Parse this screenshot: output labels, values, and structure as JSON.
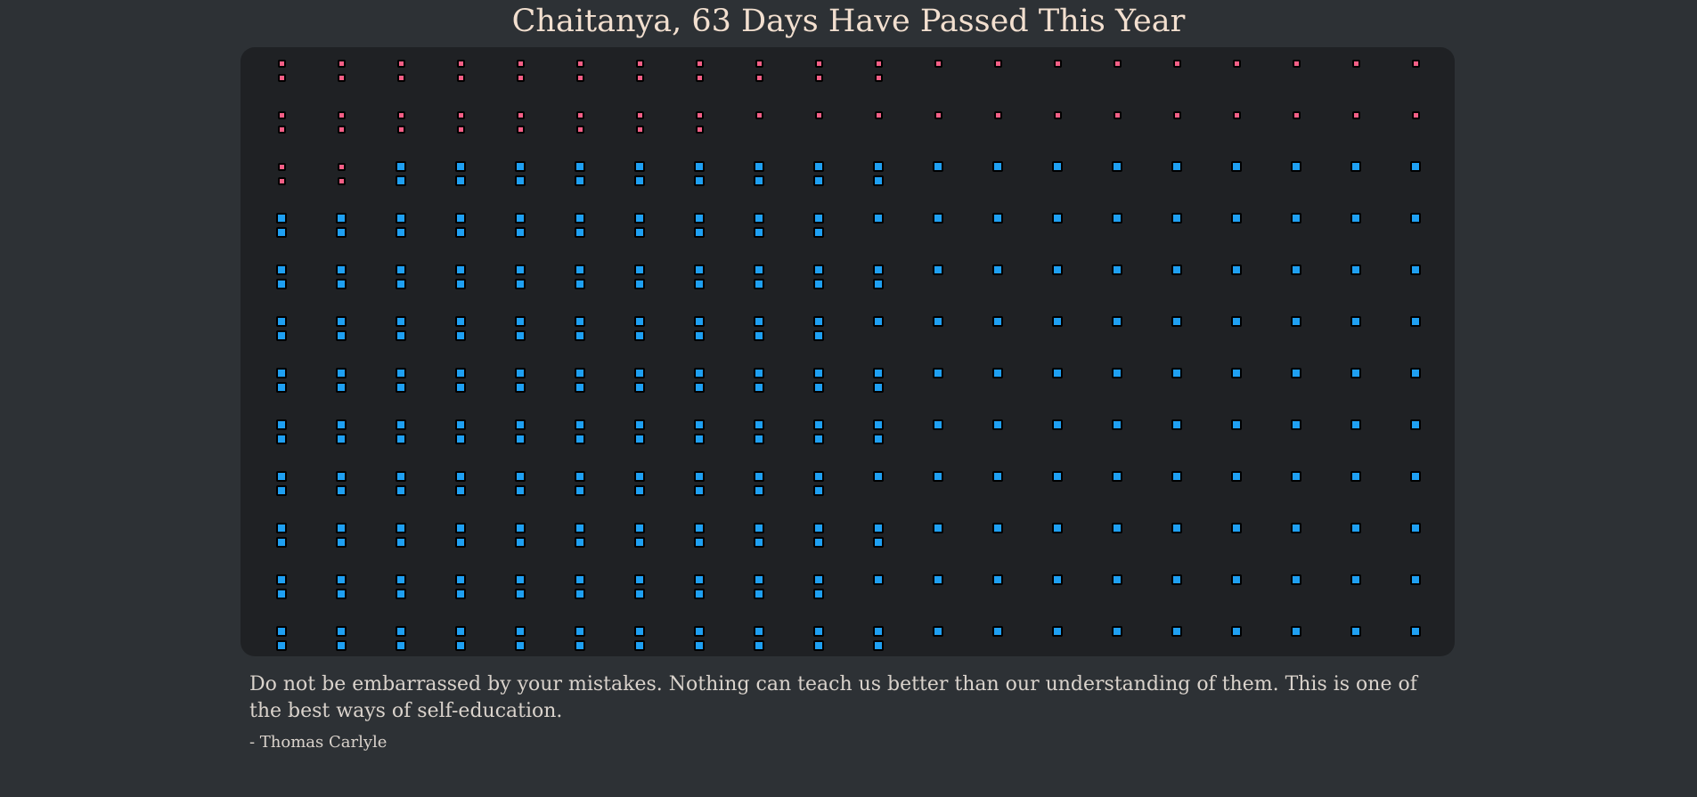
{
  "header": {
    "title": "Chaitanya, 63 Days Have Passed This Year"
  },
  "year_grid": {
    "days_passed": 63,
    "total_days": 365,
    "months": [
      {
        "days": 31
      },
      {
        "days": 28
      },
      {
        "days": 31
      },
      {
        "days": 30
      },
      {
        "days": 31
      },
      {
        "days": 30
      },
      {
        "days": 31
      },
      {
        "days": 31
      },
      {
        "days": 30
      },
      {
        "days": 31
      },
      {
        "days": 30
      },
      {
        "days": 31
      }
    ],
    "colors": {
      "passed": "#f45f86",
      "future": "#1fa0f2",
      "panel": "#1f2124",
      "background": "#2d3135",
      "title": "#f2dfcf",
      "quote": "#dad3cc"
    }
  },
  "quote": {
    "text": "Do not be embarrassed by your mistakes. Nothing can teach us better than our understanding of them. This is one of the best ways of self-education.",
    "author": "- Thomas Carlyle"
  }
}
